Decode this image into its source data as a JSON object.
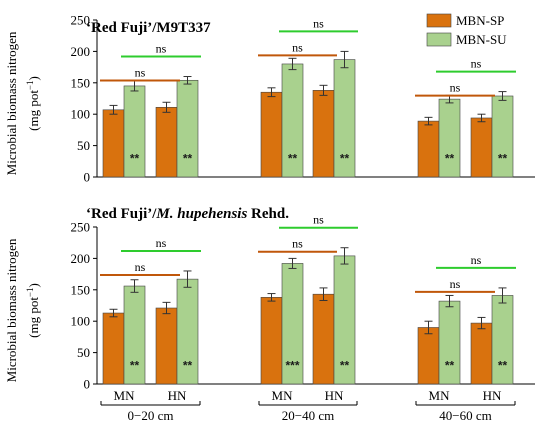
{
  "chart_data": [
    {
      "type": "bar",
      "title": {
        "part1": "‘Red Fuji’/",
        "part2": "M9T337",
        "part2_italic": false,
        "part3": ""
      },
      "ylabel_line1": "Microbial biomass nitrogen",
      "ylabel_line2": "(mg pot",
      "ylabel_sup": "−1",
      "ylabel_close": ")",
      "ylim": [
        0,
        250
      ],
      "yticks": [
        "0",
        "50",
        "100",
        "150",
        "200",
        "250"
      ],
      "legend_position": "top-right",
      "series": [
        {
          "name": "MBN-SP",
          "color": "#d9720e",
          "values": [
            107,
            111,
            135,
            138,
            89,
            94
          ],
          "errors": [
            7,
            8,
            7,
            8,
            6,
            6
          ]
        },
        {
          "name": "MBN-SU",
          "color": "#a9d18e",
          "values": [
            145,
            154,
            180,
            187,
            124,
            129
          ],
          "errors": [
            8,
            6,
            9,
            13,
            6,
            7
          ]
        }
      ],
      "stars": [
        "**",
        "**",
        "**",
        "**",
        "**",
        "**"
      ],
      "ns_label": "ns"
    },
    {
      "type": "bar",
      "title": {
        "part1": "‘Red Fuji’/",
        "part2": "M. hupehensis",
        "part2_italic": true,
        "part3": " Rehd."
      },
      "ylabel_line1": "Microbial biomass nitrogen",
      "ylabel_line2": "(mg pot",
      "ylabel_sup": "−1",
      "ylabel_close": ")",
      "ylim": [
        0,
        250
      ],
      "yticks": [
        "0",
        "50",
        "100",
        "150",
        "200",
        "250"
      ],
      "series": [
        {
          "name": "MBN-SP",
          "color": "#d9720e",
          "values": [
            113,
            121,
            138,
            143,
            90,
            97
          ],
          "errors": [
            6,
            9,
            6,
            10,
            10,
            9
          ]
        },
        {
          "name": "MBN-SU",
          "color": "#a9d18e",
          "values": [
            156,
            167,
            192,
            204,
            132,
            141
          ],
          "errors": [
            10,
            13,
            8,
            13,
            9,
            12
          ]
        }
      ],
      "stars": [
        "**",
        "**",
        "***",
        "**",
        "**",
        "**"
      ],
      "ns_label": "ns"
    }
  ],
  "x_axis": {
    "subgroups": [
      "MN",
      "HN",
      "MN",
      "HN",
      "MN",
      "HN"
    ],
    "depths": [
      "0−20 cm",
      "20−40 cm",
      "40−60 cm"
    ]
  },
  "colors": {
    "sp_line": "#c0570a",
    "su_line": "#2ecc2e"
  }
}
